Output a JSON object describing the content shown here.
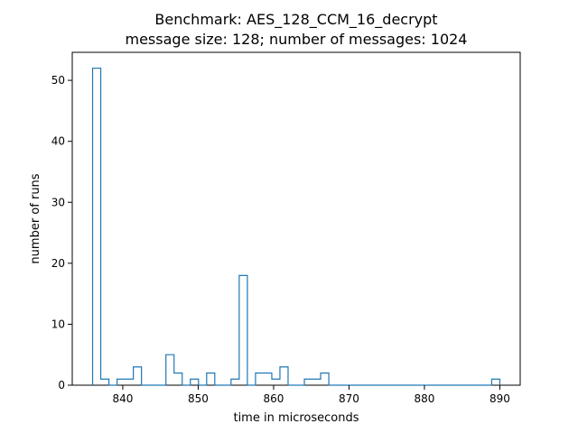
{
  "chart_data": {
    "type": "bar",
    "title": "Benchmark: AES_128_CCM_16_decrypt",
    "subtitle": "message size: 128; number of messages: 1024",
    "xlabel": "time in microseconds",
    "ylabel": "number of runs",
    "xlim": [
      833.3,
      892.7
    ],
    "ylim": [
      0,
      54.6
    ],
    "xticks": [
      840,
      850,
      860,
      870,
      880,
      890
    ],
    "yticks": [
      0,
      10,
      20,
      30,
      40,
      50
    ],
    "grid": false,
    "histtype": "step",
    "bin_edges": [
      836.0,
      837.08,
      838.16,
      839.24,
      840.32,
      841.4,
      842.48,
      843.56,
      844.64,
      845.72,
      846.8,
      847.88,
      848.96,
      850.04,
      851.12,
      852.2,
      853.28,
      854.36,
      855.44,
      856.52,
      857.6,
      858.68,
      859.76,
      860.84,
      861.92,
      863.0,
      864.08,
      865.16,
      866.24,
      867.32,
      868.4,
      869.48,
      870.56,
      871.64,
      872.72,
      873.8,
      874.88,
      875.96,
      877.04,
      878.12,
      879.2,
      880.28,
      881.36,
      882.44,
      883.52,
      884.6,
      885.68,
      886.76,
      887.84,
      888.92,
      890.0
    ],
    "counts": [
      52,
      1,
      0,
      1,
      1,
      3,
      0,
      0,
      0,
      5,
      2,
      0,
      1,
      0,
      2,
      0,
      0,
      1,
      18,
      0,
      2,
      2,
      1,
      3,
      0,
      0,
      1,
      1,
      2,
      0,
      0,
      0,
      0,
      0,
      0,
      0,
      0,
      0,
      0,
      0,
      0,
      0,
      0,
      0,
      0,
      0,
      0,
      0,
      0,
      1
    ],
    "colors": {
      "line": "#1f77b4",
      "axes": "#000000",
      "background": "#ffffff"
    }
  }
}
